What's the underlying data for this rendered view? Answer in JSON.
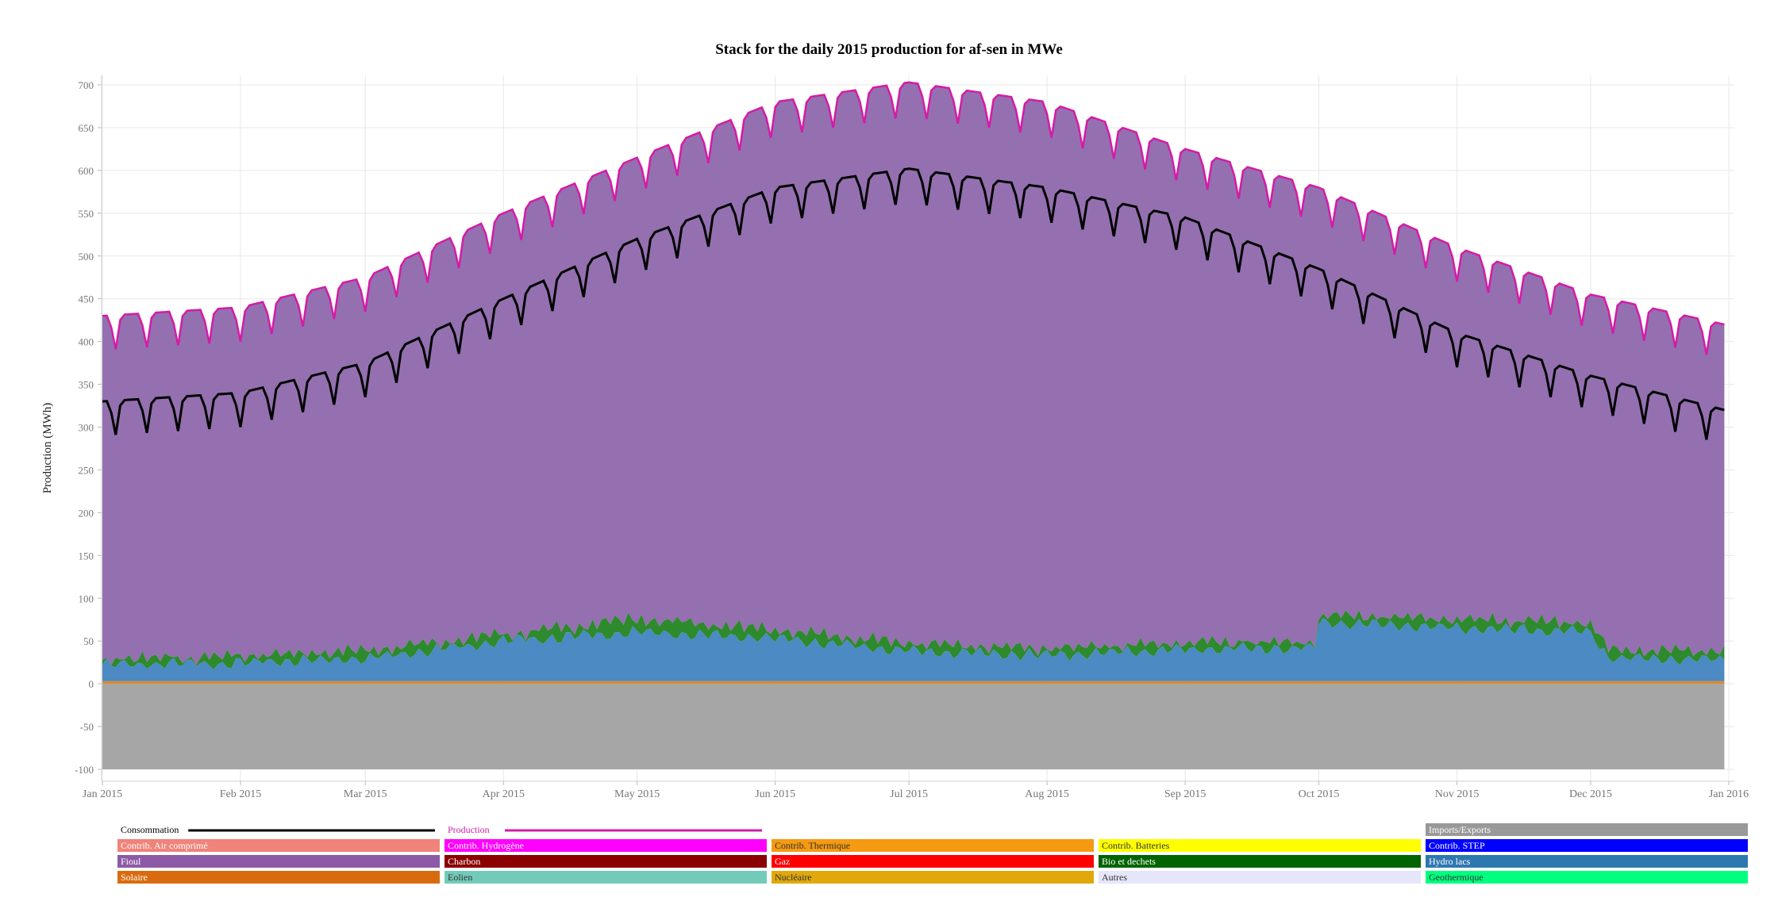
{
  "chart_data": {
    "type": "area",
    "title": "Stack for the daily 2015 production for af-sen in MWe",
    "ylabel": "Production (MWh)",
    "xlabel": "",
    "ylim": [
      -100,
      700
    ],
    "xlim": [
      "2015-01-01",
      "2016-01-01"
    ],
    "grid": true,
    "yticks": [
      -100,
      -50,
      0,
      50,
      100,
      150,
      200,
      250,
      300,
      350,
      400,
      450,
      500,
      550,
      600,
      650,
      700
    ],
    "xticks": [
      {
        "date": "2015-01-01",
        "label": "Jan 2015"
      },
      {
        "date": "2015-02-01",
        "label": "Feb 2015"
      },
      {
        "date": "2015-03-01",
        "label": "Mar 2015"
      },
      {
        "date": "2015-04-01",
        "label": "Apr 2015"
      },
      {
        "date": "2015-05-01",
        "label": "May 2015"
      },
      {
        "date": "2015-06-01",
        "label": "Jun 2015"
      },
      {
        "date": "2015-07-01",
        "label": "Jul 2015"
      },
      {
        "date": "2015-08-01",
        "label": "Aug 2015"
      },
      {
        "date": "2015-09-01",
        "label": "Sep 2015"
      },
      {
        "date": "2015-10-01",
        "label": "Oct 2015"
      },
      {
        "date": "2015-11-01",
        "label": "Nov 2015"
      },
      {
        "date": "2015-12-01",
        "label": "Dec 2015"
      },
      {
        "date": "2016-01-01",
        "label": "Jan 2016"
      }
    ],
    "series_keypoints": {
      "imports_exports": [
        [
          "2015-01-01",
          -100
        ],
        [
          "2015-12-31",
          -100
        ]
      ],
      "solaire_total": [
        [
          "2015-01-01",
          3
        ],
        [
          "2015-12-31",
          3
        ]
      ],
      "hydro_total": [
        [
          "2015-01-01",
          22
        ],
        [
          "2015-02-01",
          24
        ],
        [
          "2015-03-01",
          30
        ],
        [
          "2015-04-01",
          50
        ],
        [
          "2015-05-01",
          60
        ],
        [
          "2015-06-01",
          53
        ],
        [
          "2015-07-01",
          38
        ],
        [
          "2015-08-01",
          33
        ],
        [
          "2015-09-01",
          40
        ],
        [
          "2015-09-30",
          42
        ],
        [
          "2015-10-01",
          72
        ],
        [
          "2015-11-01",
          65
        ],
        [
          "2015-12-01",
          60
        ],
        [
          "2015-12-05",
          30
        ],
        [
          "2015-12-31",
          28
        ]
      ],
      "bio_total": [
        [
          "2015-01-01",
          27
        ],
        [
          "2015-02-01",
          32
        ],
        [
          "2015-03-01",
          40
        ],
        [
          "2015-04-01",
          57
        ],
        [
          "2015-05-01",
          76
        ],
        [
          "2015-06-01",
          63
        ],
        [
          "2015-07-01",
          47
        ],
        [
          "2015-08-01",
          40
        ],
        [
          "2015-09-01",
          48
        ],
        [
          "2015-09-30",
          48
        ],
        [
          "2015-10-01",
          80
        ],
        [
          "2015-11-01",
          75
        ],
        [
          "2015-12-01",
          70
        ],
        [
          "2015-12-05",
          40
        ],
        [
          "2015-12-31",
          38
        ]
      ],
      "production_weekday_peak": [
        [
          "2015-01-01",
          430
        ],
        [
          "2015-02-01",
          440
        ],
        [
          "2015-03-01",
          475
        ],
        [
          "2015-04-01",
          550
        ],
        [
          "2015-05-01",
          615
        ],
        [
          "2015-06-01",
          680
        ],
        [
          "2015-07-01",
          703
        ],
        [
          "2015-08-01",
          680
        ],
        [
          "2015-09-01",
          625
        ],
        [
          "2015-10-01",
          580
        ],
        [
          "2015-11-01",
          510
        ],
        [
          "2015-12-01",
          455
        ],
        [
          "2015-12-31",
          420
        ]
      ],
      "production_weekend_dip": 40,
      "consommation_weekday_peak": [
        [
          "2015-01-01",
          330
        ],
        [
          "2015-02-01",
          340
        ],
        [
          "2015-03-01",
          375
        ],
        [
          "2015-04-01",
          450
        ],
        [
          "2015-05-01",
          520
        ],
        [
          "2015-06-01",
          580
        ],
        [
          "2015-07-01",
          602
        ],
        [
          "2015-08-01",
          580
        ],
        [
          "2015-09-01",
          545
        ],
        [
          "2015-10-01",
          485
        ],
        [
          "2015-11-01",
          410
        ],
        [
          "2015-12-01",
          360
        ],
        [
          "2015-12-31",
          320
        ]
      ],
      "consommation_weekend_dip": 40
    },
    "legend": [
      {
        "label": "Consommation",
        "color": "#000000",
        "kind": "line"
      },
      {
        "label": "Production",
        "color": "#cc1faa",
        "kind": "line"
      },
      {
        "label": "Imports/Exports",
        "color": "#999999",
        "kind": "fill"
      },
      {
        "label": "Contrib. Air comprimé",
        "color": "#f0837a",
        "kind": "fill"
      },
      {
        "label": "Contrib. Hydrogène",
        "color": "#ff00ff",
        "kind": "fill"
      },
      {
        "label": "Contrib. Thermique",
        "color": "#f59a12",
        "kind": "fill"
      },
      {
        "label": "Contrib. Batteries",
        "color": "#ffff00",
        "kind": "fill"
      },
      {
        "label": "Contrib. STEP",
        "color": "#0000ff",
        "kind": "fill"
      },
      {
        "label": "Fioul",
        "color": "#8c5aa6",
        "kind": "fill"
      },
      {
        "label": "Charbon",
        "color": "#8b0000",
        "kind": "fill"
      },
      {
        "label": "Gaz",
        "color": "#ff0000",
        "kind": "fill"
      },
      {
        "label": "Bio et dechets",
        "color": "#006400",
        "kind": "fill"
      },
      {
        "label": "Hydro lacs",
        "color": "#2e78b0",
        "kind": "fill"
      },
      {
        "label": "Solaire",
        "color": "#d96b0f",
        "kind": "fill"
      },
      {
        "label": "Eolien",
        "color": "#72cbb8",
        "kind": "fill"
      },
      {
        "label": "Nucléaire",
        "color": "#e0a80a",
        "kind": "fill"
      },
      {
        "label": "Autres",
        "color": "#e6e6fa",
        "kind": "fill"
      },
      {
        "label": "Geothermique",
        "color": "#00ff7f",
        "kind": "fill"
      }
    ],
    "legend_position": "bottom"
  },
  "colors": {
    "fioul_area": "#9470b0",
    "hydro_area": "#4b8ac2",
    "bio_area": "#2d8a2d",
    "solaire_area": "#d9892f",
    "imports_area": "#a6a6a6",
    "production_line": "#d41ba6",
    "consommation_line": "#000000",
    "grid": "#e8e8e8",
    "axis_text": "#777777"
  }
}
